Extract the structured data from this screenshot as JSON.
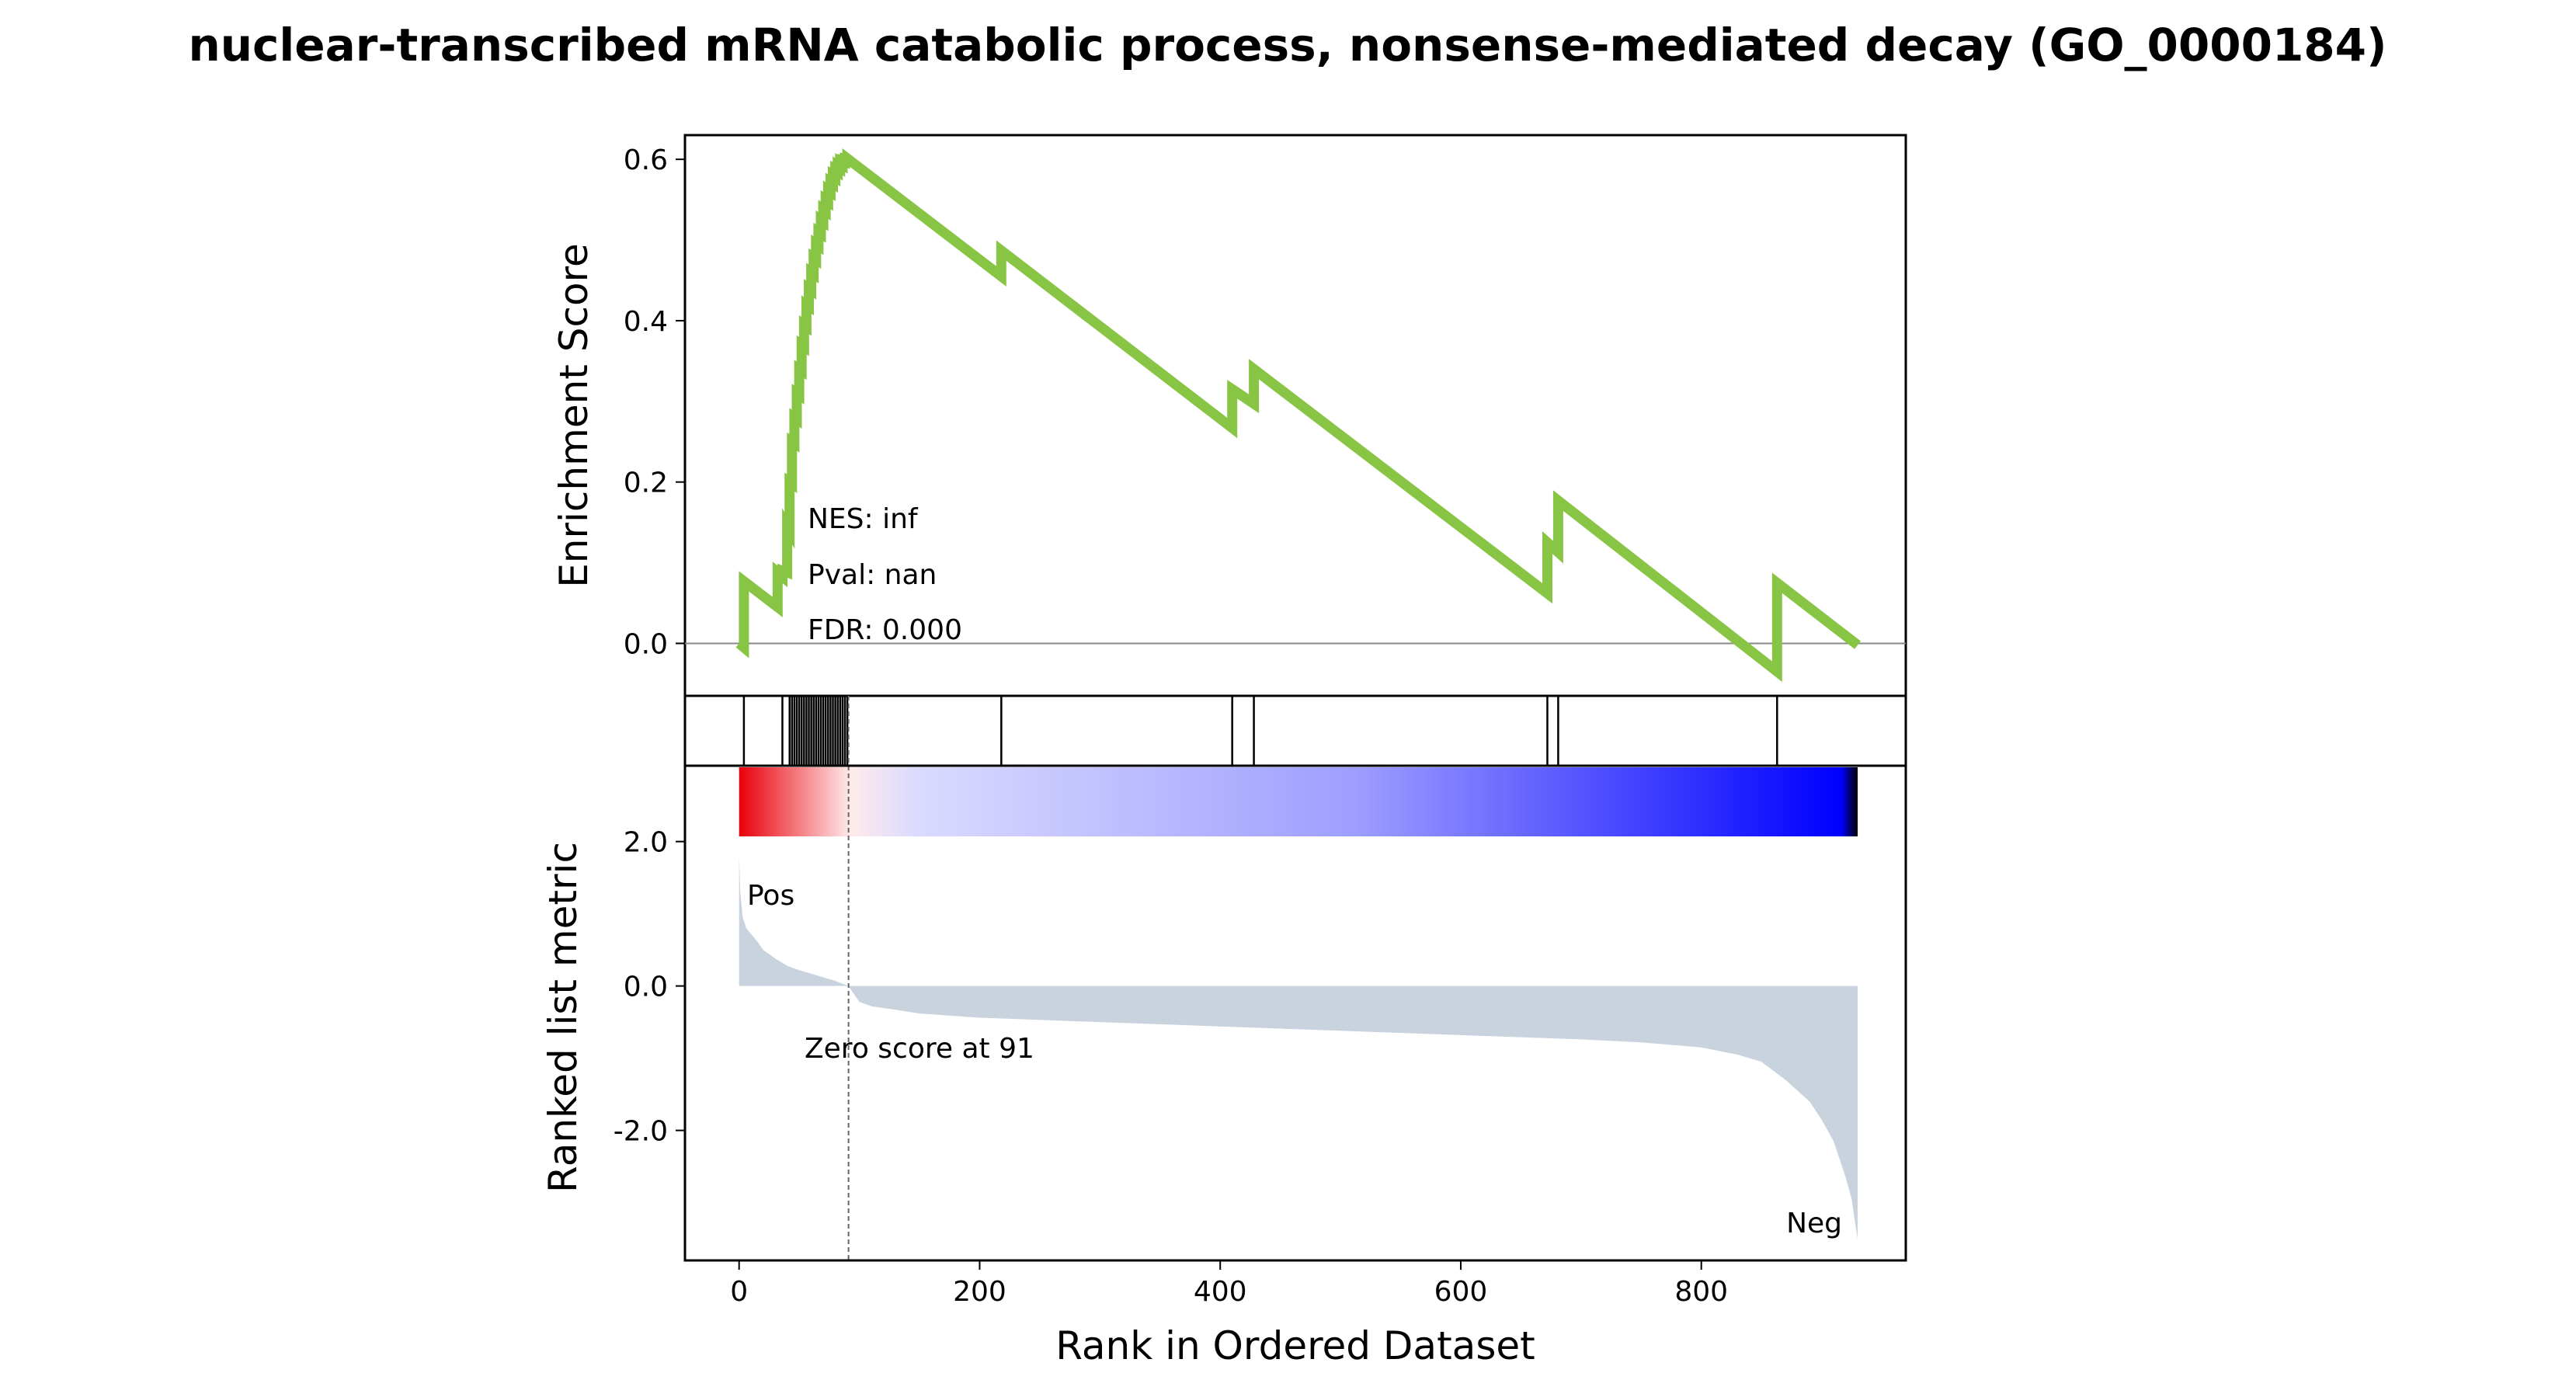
{
  "chart_data": {
    "type": "line",
    "title": "nuclear-transcribed mRNA catabolic process, nonsense-mediated decay (GO_0000184)",
    "xlabel": "Rank in Ordered Dataset",
    "xlim": [
      -45,
      970
    ],
    "xticks": [
      0,
      200,
      400,
      600,
      800
    ],
    "colors": {
      "es_line": "#88C544",
      "zero_line": "#888888",
      "metric_fill": "#C9D3DE",
      "pos_label": "#E8000B",
      "neg_label": "#0000CC",
      "hits": "#000000"
    },
    "es_panel": {
      "ylabel": "Enrichment Score",
      "ylim": [
        -0.065,
        0.63
      ],
      "yticks": [
        0.0,
        0.2,
        0.4,
        0.6
      ],
      "ytick_labels": [
        "0.0",
        "0.2",
        "0.4",
        "0.6"
      ],
      "series": [
        {
          "x": [
            0,
            4,
            4,
            32,
            32,
            36,
            36,
            40,
            40,
            42,
            42,
            44,
            44,
            46,
            46,
            48,
            48,
            50,
            50,
            52,
            52,
            54,
            54,
            56,
            56,
            58,
            58,
            60,
            60,
            62,
            62,
            64,
            64,
            66,
            66,
            68,
            68,
            70,
            70,
            72,
            72,
            74,
            74,
            76,
            76,
            78,
            78,
            80,
            80,
            82,
            82,
            84,
            84,
            86,
            86,
            88,
            88,
            90,
            90,
            218,
            218,
            410,
            410,
            428,
            428,
            672,
            672,
            681,
            681,
            863,
            863,
            930
          ],
          "y": [
            0.0,
            -0.005,
            0.077,
            0.045,
            0.088,
            0.083,
            0.09,
            0.088,
            0.145,
            0.14,
            0.2,
            0.198,
            0.25,
            0.248,
            0.28,
            0.278,
            0.31,
            0.308,
            0.34,
            0.338,
            0.37,
            0.368,
            0.395,
            0.393,
            0.42,
            0.418,
            0.44,
            0.438,
            0.46,
            0.458,
            0.478,
            0.476,
            0.495,
            0.493,
            0.51,
            0.508,
            0.525,
            0.523,
            0.538,
            0.536,
            0.55,
            0.548,
            0.562,
            0.56,
            0.572,
            0.57,
            0.58,
            0.578,
            0.587,
            0.585,
            0.592,
            0.59,
            0.596,
            0.594,
            0.598,
            0.597,
            0.6,
            0.599,
            0.601,
            0.455,
            0.487,
            0.267,
            0.315,
            0.297,
            0.34,
            0.062,
            0.125,
            0.113,
            0.177,
            -0.035,
            0.075,
            -0.002
          ]
        }
      ],
      "annotations": {
        "nes": "NES: inf",
        "pval": "Pval: nan",
        "fdr": "FDR: 0.000"
      }
    },
    "hits_panel": {
      "hit_positions": [
        4,
        36,
        42,
        44,
        46,
        48,
        50,
        52,
        54,
        56,
        58,
        60,
        62,
        64,
        66,
        68,
        70,
        72,
        74,
        76,
        78,
        80,
        82,
        84,
        86,
        88,
        90,
        218,
        410,
        428,
        672,
        681,
        863
      ]
    },
    "metric_panel": {
      "ylabel": "Ranked list metric",
      "ylim": [
        -3.8,
        3.05
      ],
      "yticks": [
        2.0,
        0.0,
        -2.0
      ],
      "ytick_labels": [
        "2.0",
        "0.0",
        "-2.0"
      ],
      "profile": {
        "x": [
          0,
          1,
          3,
          6,
          10,
          15,
          20,
          30,
          40,
          50,
          60,
          70,
          80,
          91,
          95,
          100,
          110,
          130,
          150,
          200,
          300,
          400,
          500,
          600,
          700,
          750,
          800,
          830,
          850,
          870,
          890,
          900,
          910,
          915,
          920,
          925,
          928,
          930
        ],
        "y": [
          1.8,
          1.3,
          0.95,
          0.8,
          0.72,
          0.62,
          0.5,
          0.38,
          0.28,
          0.22,
          0.17,
          0.12,
          0.07,
          0.0,
          -0.1,
          -0.22,
          -0.28,
          -0.33,
          -0.38,
          -0.44,
          -0.5,
          -0.56,
          -0.62,
          -0.68,
          -0.74,
          -0.78,
          -0.85,
          -0.95,
          -1.05,
          -1.3,
          -1.6,
          -1.85,
          -2.15,
          -2.4,
          -2.65,
          -2.95,
          -3.3,
          -3.5
        ]
      },
      "zero_cross_x": 91,
      "zero_score_label": "Zero score at 91",
      "pos_label": "Pos",
      "neg_label": "Neg",
      "colorbar_stops": [
        "#E8000B",
        "#FFEBEB",
        "#DADAFF",
        "#9E9EFF",
        "#0000FF",
        "#000000"
      ]
    }
  }
}
